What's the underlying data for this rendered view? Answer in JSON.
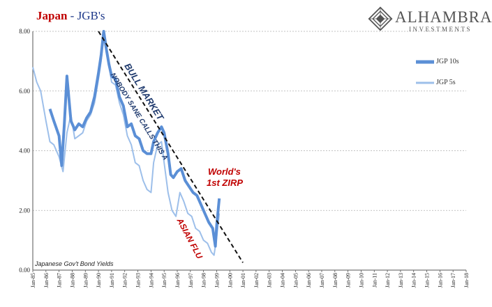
{
  "title": {
    "part1": "Japan",
    "part2": " - JGB's"
  },
  "brand": {
    "name": "ALHAMBRA",
    "sub": "INVESTMENTS",
    "logo_icon": "alhambra-diamond-icon"
  },
  "source_note": "Japanese Gov't Bond Yields",
  "colors": {
    "jgb10": "#5b8fd6",
    "jgb5": "#9dbfea",
    "title_red": "#c00000",
    "title_blue": "#1f3a8a",
    "annot_navy": "#1f3a6e",
    "annot_red": "#c00000"
  },
  "annotations": {
    "trend1": "NOBODY SANE CALLS THIS A",
    "trend2": "BULL MARKET",
    "zirp1": "World's",
    "zirp2": "1st ZIRP",
    "flu": "ASIAN FLU"
  },
  "chart_data": {
    "type": "line",
    "title": "Japan - JGB's",
    "xlabel": "",
    "ylabel": "",
    "ylim": [
      0,
      8
    ],
    "yticks": [
      "0.00",
      "2.00",
      "4.00",
      "6.00",
      "8.00"
    ],
    "xticks": [
      "Jan-85",
      "Jan-86",
      "Jan-87",
      "Jan-88",
      "Jan-89",
      "Jan-90",
      "Jan-91",
      "Jan-92",
      "Jan-93",
      "Jan-94",
      "Jan-95",
      "Jan-96",
      "Jan-97",
      "Jan-98",
      "Jan-99",
      "Jan-00",
      "Jan-01",
      "Jan-02",
      "Jan-03",
      "Jan-04",
      "Jan-05",
      "Jan-06",
      "Jan-07",
      "Jan-08",
      "Jan-09",
      "Jan-10",
      "Jan-11",
      "Jan-12",
      "Jan-13",
      "Jan-14",
      "Jan-15",
      "Jan-16",
      "Jan-17",
      "Jan-18"
    ],
    "xlim": [
      1985.0,
      2018.0
    ],
    "grid": true,
    "legend": "right",
    "trendline": {
      "from": [
        1990.0,
        8.0
      ],
      "to": [
        2001.0,
        0.25
      ]
    },
    "series": [
      {
        "name": "JGP 10s",
        "color": "#5b8fd6",
        "width": 4,
        "x": [
          1986.3,
          1986.6,
          1987.0,
          1987.2,
          1987.4,
          1987.6,
          1987.9,
          1988.2,
          1988.5,
          1988.8,
          1989.1,
          1989.4,
          1989.7,
          1990.0,
          1990.2,
          1990.4,
          1990.6,
          1990.8,
          1991.0,
          1991.3,
          1991.6,
          1991.9,
          1992.2,
          1992.5,
          1992.8,
          1993.1,
          1993.4,
          1993.7,
          1994.0,
          1994.2,
          1994.5,
          1994.8,
          1995.0,
          1995.3,
          1995.5,
          1995.7,
          1996.0,
          1996.3,
          1996.6,
          1996.9,
          1997.2,
          1997.5,
          1997.8,
          1998.1,
          1998.4,
          1998.7,
          1998.9,
          1999.0,
          1999.2
        ],
        "y": [
          5.4,
          5.0,
          4.5,
          3.5,
          4.9,
          6.5,
          5.0,
          4.7,
          4.9,
          4.8,
          5.1,
          5.3,
          5.8,
          6.6,
          7.2,
          8.0,
          7.4,
          6.9,
          6.5,
          6.4,
          5.8,
          5.5,
          4.8,
          4.9,
          4.5,
          4.4,
          4.0,
          3.9,
          3.9,
          4.3,
          4.6,
          4.8,
          4.6,
          3.9,
          3.2,
          3.1,
          3.3,
          3.4,
          3.0,
          2.8,
          2.6,
          2.5,
          2.2,
          1.9,
          1.6,
          1.4,
          0.8,
          1.5,
          2.4
        ]
      },
      {
        "name": "JGP 5s",
        "color": "#9dbfea",
        "width": 2,
        "x": [
          1985.0,
          1985.3,
          1985.6,
          1986.0,
          1986.3,
          1986.6,
          1987.0,
          1987.3,
          1987.6,
          1987.9,
          1988.2,
          1988.5,
          1988.8,
          1989.1,
          1989.4,
          1989.7,
          1990.0,
          1990.2,
          1990.4,
          1990.6,
          1990.8,
          1991.0,
          1991.3,
          1991.6,
          1991.9,
          1992.2,
          1992.5,
          1992.8,
          1993.1,
          1993.4,
          1993.7,
          1994.0,
          1994.2,
          1994.5,
          1994.8,
          1995.0,
          1995.3,
          1995.6,
          1995.9,
          1996.2,
          1996.5,
          1996.8,
          1997.1,
          1997.4,
          1997.7,
          1998.0,
          1998.3,
          1998.6,
          1998.8,
          1999.0,
          1999.2
        ],
        "y": [
          6.8,
          6.3,
          6.0,
          5.0,
          4.3,
          4.2,
          3.8,
          3.3,
          4.6,
          5.2,
          4.4,
          4.5,
          4.6,
          5.0,
          5.2,
          5.6,
          6.4,
          7.0,
          7.9,
          7.4,
          6.9,
          6.3,
          6.2,
          5.6,
          5.2,
          4.5,
          4.2,
          3.6,
          3.5,
          3.0,
          2.7,
          2.6,
          3.6,
          4.2,
          4.3,
          3.6,
          2.6,
          2.0,
          1.8,
          2.6,
          2.3,
          1.9,
          1.8,
          1.4,
          1.3,
          1.0,
          0.9,
          0.6,
          0.5,
          1.1,
          1.9
        ]
      }
    ]
  }
}
